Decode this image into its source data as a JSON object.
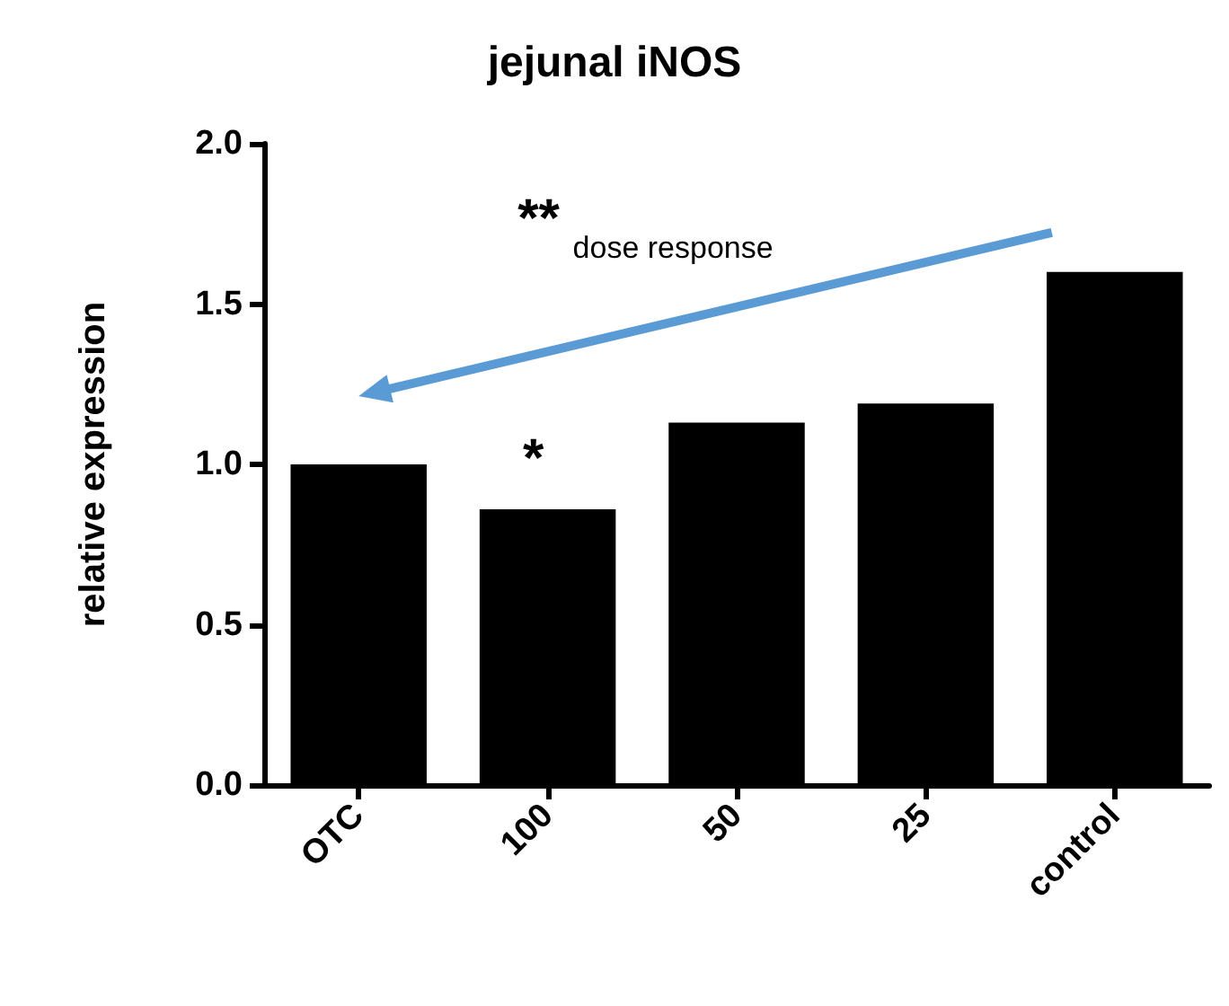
{
  "chart_data": {
    "type": "bar",
    "title": "jejunal iNOS",
    "ylabel": "relative expression",
    "categories": [
      "OTC",
      "100",
      "50",
      "25",
      "control"
    ],
    "values": [
      1.0,
      0.86,
      1.13,
      1.19,
      1.6
    ],
    "color": "#000000",
    "ylim": [
      0,
      2
    ],
    "yticks": [
      {
        "value": 0,
        "label": "0.0"
      },
      {
        "value": 0.5,
        "label": "0.5"
      },
      {
        "value": 1,
        "label": "1.0"
      },
      {
        "value": 1.5,
        "label": "1.5"
      },
      {
        "value": 2,
        "label": "2.0"
      }
    ],
    "annotations": [
      "*",
      "**",
      "dose response"
    ],
    "grid": false
  }
}
